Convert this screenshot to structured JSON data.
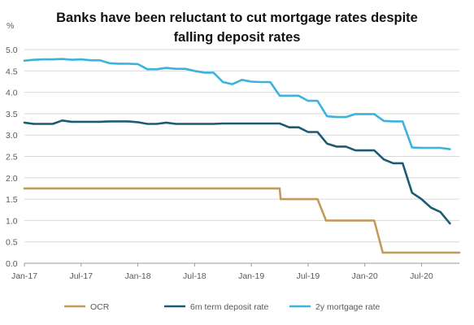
{
  "chart_data": {
    "type": "line",
    "title_lines": [
      "Banks have been reluctant to cut mortgage rates despite",
      "falling deposit rates"
    ],
    "y_unit_label": "%",
    "ylim": [
      0,
      5
    ],
    "y_ticks": [
      "0.0",
      "0.5",
      "1.0",
      "1.5",
      "2.0",
      "2.5",
      "3.0",
      "3.5",
      "4.0",
      "4.5",
      "5.0"
    ],
    "x_tick_labels": [
      "Jan-17",
      "Jul-17",
      "Jan-18",
      "Jul-18",
      "Jan-19",
      "Jul-19",
      "Jan-20",
      "Jul-20"
    ],
    "x_tick_months": [
      0,
      6,
      12,
      18,
      24,
      30,
      36,
      42
    ],
    "x_range_months": [
      0,
      46
    ],
    "grid": "horizontal",
    "legend_position": "bottom",
    "colors": {
      "ocr": "#c49a5a",
      "deposit": "#1b5c72",
      "mortgage": "#3bb3dc",
      "grid": "#d9d9d9",
      "axis": "#9a9a9a"
    },
    "series": [
      {
        "name": "OCR",
        "color_key": "ocr",
        "points": [
          [
            0,
            1.75
          ],
          [
            27,
            1.75
          ],
          [
            27.1,
            1.5
          ],
          [
            31,
            1.5
          ],
          [
            31.9,
            1.0
          ],
          [
            37,
            1.0
          ],
          [
            37.9,
            0.25
          ],
          [
            46,
            0.25
          ]
        ]
      },
      {
        "name": "6m term deposit rate",
        "color_key": "deposit",
        "points": [
          [
            0,
            3.29
          ],
          [
            1,
            3.26
          ],
          [
            2,
            3.26
          ],
          [
            3,
            3.26
          ],
          [
            4,
            3.34
          ],
          [
            5,
            3.31
          ],
          [
            6,
            3.31
          ],
          [
            7,
            3.31
          ],
          [
            8,
            3.31
          ],
          [
            9,
            3.32
          ],
          [
            10,
            3.32
          ],
          [
            11,
            3.32
          ],
          [
            12,
            3.3
          ],
          [
            13,
            3.26
          ],
          [
            14,
            3.26
          ],
          [
            15,
            3.29
          ],
          [
            16,
            3.26
          ],
          [
            17,
            3.26
          ],
          [
            18,
            3.26
          ],
          [
            19,
            3.26
          ],
          [
            20,
            3.26
          ],
          [
            21,
            3.27
          ],
          [
            22,
            3.27
          ],
          [
            23,
            3.27
          ],
          [
            24,
            3.27
          ],
          [
            25,
            3.27
          ],
          [
            26,
            3.27
          ],
          [
            27,
            3.27
          ],
          [
            28,
            3.18
          ],
          [
            29,
            3.18
          ],
          [
            30,
            3.07
          ],
          [
            31,
            3.07
          ],
          [
            32,
            2.8
          ],
          [
            33,
            2.73
          ],
          [
            34,
            2.73
          ],
          [
            35,
            2.64
          ],
          [
            36,
            2.64
          ],
          [
            37,
            2.64
          ],
          [
            38,
            2.43
          ],
          [
            39,
            2.34
          ],
          [
            40,
            2.34
          ],
          [
            41,
            1.65
          ],
          [
            42,
            1.5
          ],
          [
            43,
            1.3
          ],
          [
            44,
            1.2
          ],
          [
            45,
            0.93
          ]
        ]
      },
      {
        "name": "2y mortgage rate",
        "color_key": "mortgage",
        "points": [
          [
            0,
            4.74
          ],
          [
            1,
            4.76
          ],
          [
            2,
            4.77
          ],
          [
            3,
            4.77
          ],
          [
            4,
            4.78
          ],
          [
            5,
            4.76
          ],
          [
            6,
            4.77
          ],
          [
            7,
            4.75
          ],
          [
            8,
            4.75
          ],
          [
            9,
            4.68
          ],
          [
            10,
            4.67
          ],
          [
            11,
            4.67
          ],
          [
            12,
            4.66
          ],
          [
            13,
            4.54
          ],
          [
            14,
            4.54
          ],
          [
            15,
            4.57
          ],
          [
            16,
            4.55
          ],
          [
            17,
            4.55
          ],
          [
            18,
            4.5
          ],
          [
            19,
            4.46
          ],
          [
            20,
            4.46
          ],
          [
            21,
            4.24
          ],
          [
            22,
            4.19
          ],
          [
            23,
            4.29
          ],
          [
            24,
            4.25
          ],
          [
            25,
            4.24
          ],
          [
            26,
            4.24
          ],
          [
            27,
            3.92
          ],
          [
            28,
            3.92
          ],
          [
            29,
            3.92
          ],
          [
            30,
            3.8
          ],
          [
            31,
            3.8
          ],
          [
            32,
            3.44
          ],
          [
            33,
            3.42
          ],
          [
            34,
            3.42
          ],
          [
            35,
            3.49
          ],
          [
            36,
            3.49
          ],
          [
            37,
            3.49
          ],
          [
            38,
            3.33
          ],
          [
            39,
            3.32
          ],
          [
            40,
            3.32
          ],
          [
            41,
            2.71
          ],
          [
            42,
            2.7
          ],
          [
            43,
            2.7
          ],
          [
            44,
            2.7
          ],
          [
            45,
            2.67
          ]
        ]
      }
    ]
  }
}
